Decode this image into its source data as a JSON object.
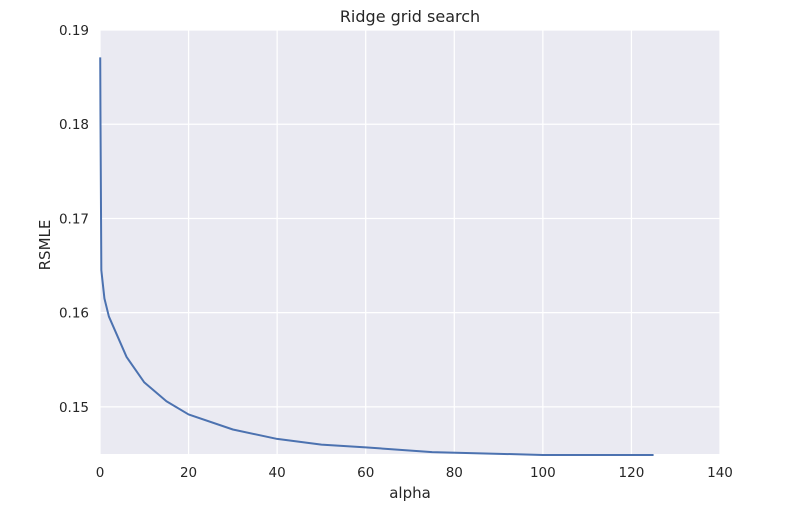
{
  "chart_data": {
    "type": "line",
    "title": "Ridge grid search",
    "xlabel": "alpha",
    "ylabel": "RSMLE",
    "xlim": [
      0,
      140
    ],
    "ylim": [
      0.145,
      0.19
    ],
    "x_ticks": [
      "0",
      "20",
      "40",
      "60",
      "80",
      "100",
      "120",
      "140"
    ],
    "y_ticks": [
      "0.15",
      "0.16",
      "0.17",
      "0.18",
      "0.19"
    ],
    "grid": true,
    "legend": "none",
    "colors": {
      "plot_background": "#eaeaf2",
      "grid": "#ffffff",
      "line": "#4c72b0",
      "text": "#262626"
    },
    "series": [
      {
        "x": [
          0.05,
          0.1,
          0.3,
          1,
          2,
          6,
          10,
          15,
          20,
          30,
          40,
          50,
          60,
          75,
          100,
          125
        ],
        "y": [
          0.1871,
          0.1815,
          0.1645,
          0.1615,
          0.1596,
          0.1553,
          0.1526,
          0.1506,
          0.1492,
          0.1476,
          0.1466,
          0.146,
          0.1457,
          0.1452,
          0.1449,
          0.1449
        ]
      }
    ]
  }
}
